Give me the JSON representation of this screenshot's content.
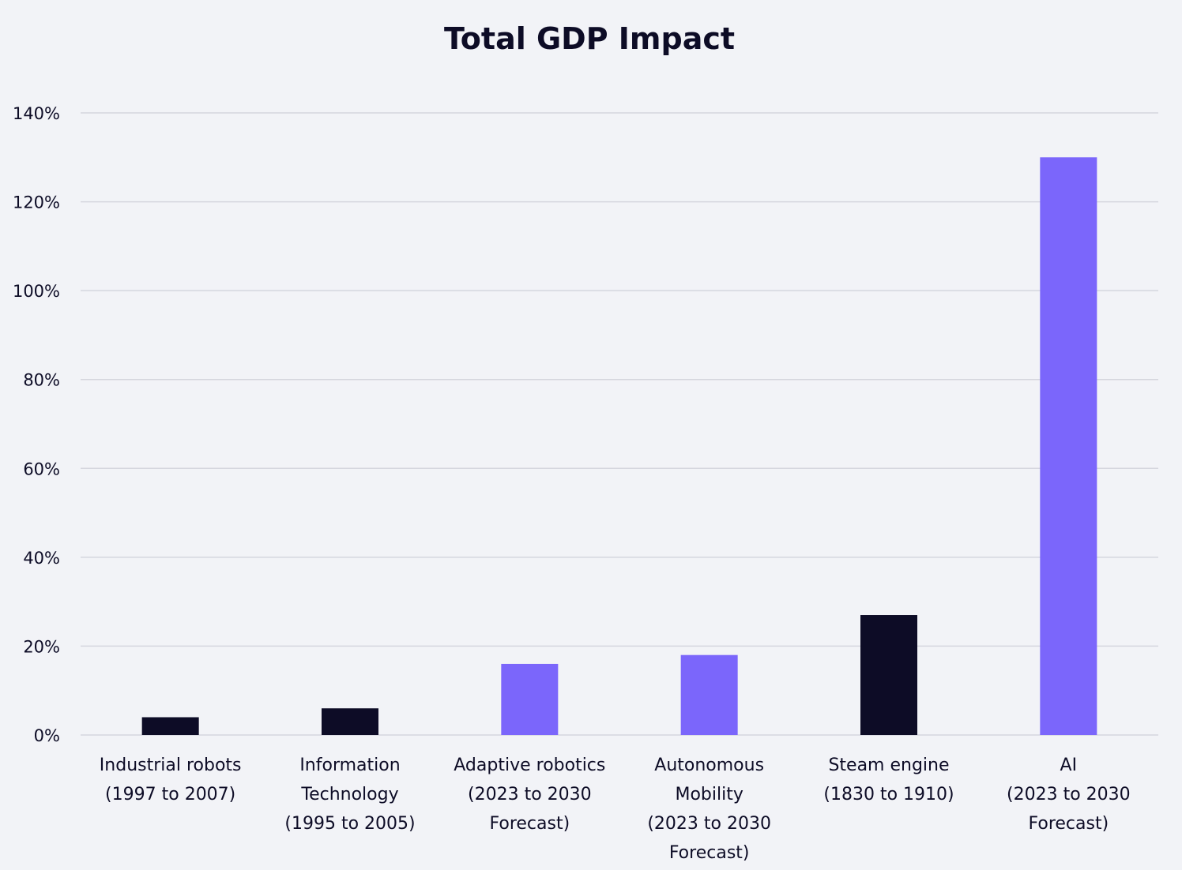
{
  "chart_data": {
    "type": "bar",
    "title": "Total GDP Impact",
    "xlabel": "",
    "ylabel": "",
    "ylim": [
      0,
      140
    ],
    "yticks": [
      0,
      20,
      40,
      60,
      80,
      100,
      120,
      140
    ],
    "ytick_labels": [
      "0%",
      "20%",
      "40%",
      "60%",
      "80%",
      "100%",
      "120%",
      "140%"
    ],
    "grid": true,
    "categories": [
      [
        "Industrial robots",
        "(1997 to 2007)"
      ],
      [
        "Information",
        "Technology",
        "(1995 to 2005)"
      ],
      [
        "Adaptive robotics",
        "(2023 to 2030",
        "Forecast)"
      ],
      [
        "Autonomous",
        "Mobility",
        "(2023 to 2030",
        "Forecast)"
      ],
      [
        "Steam engine",
        "(1830 to 1910)"
      ],
      [
        "AI",
        "(2023 to 2030",
        "Forecast)"
      ]
    ],
    "values": [
      4,
      6,
      16,
      18,
      27,
      130
    ],
    "bar_colors": [
      "#0d0c26",
      "#0d0c26",
      "#7b66fb",
      "#7b66fb",
      "#0d0c26",
      "#7b66fb"
    ]
  },
  "colors": {
    "background": "#f2f3f7",
    "text": "#0d0c26",
    "grid": "#d5d6de",
    "historical": "#0d0c26",
    "forecast": "#7b66fb"
  }
}
